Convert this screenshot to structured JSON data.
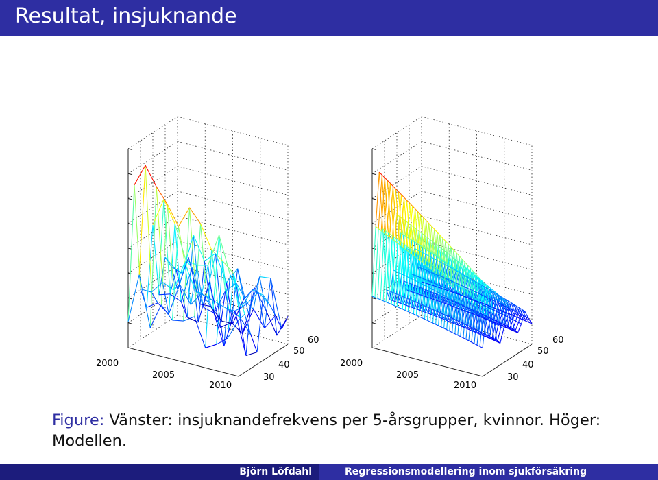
{
  "slide": {
    "title": "Resultat, insjuknande"
  },
  "figure": {
    "caption_label": "Figure:",
    "caption_text": "Vänster: insjuknandefrekvens per 5-årsgrupper, kvinnor. Höger: Modellen."
  },
  "plots": [
    {
      "panel": "left",
      "year_ticks": [
        "2000",
        "2005",
        "2010"
      ],
      "age_ticks": [
        "30",
        "40",
        "50",
        "60"
      ]
    },
    {
      "panel": "right",
      "year_ticks": [
        "2000",
        "2005",
        "2010"
      ],
      "age_ticks": [
        "30",
        "40",
        "50",
        "60"
      ]
    }
  ],
  "footer": {
    "author": "Björn Löfdahl",
    "short_title": "Regressionsmodellering inom sjukförsäkring"
  },
  "colors": {
    "title_bar": "#2e2ea2",
    "footer_left": "#1c1c7c",
    "footer_right": "#2e2ea2",
    "caption_label": "#2e2ea2",
    "colormap": "jet"
  }
}
